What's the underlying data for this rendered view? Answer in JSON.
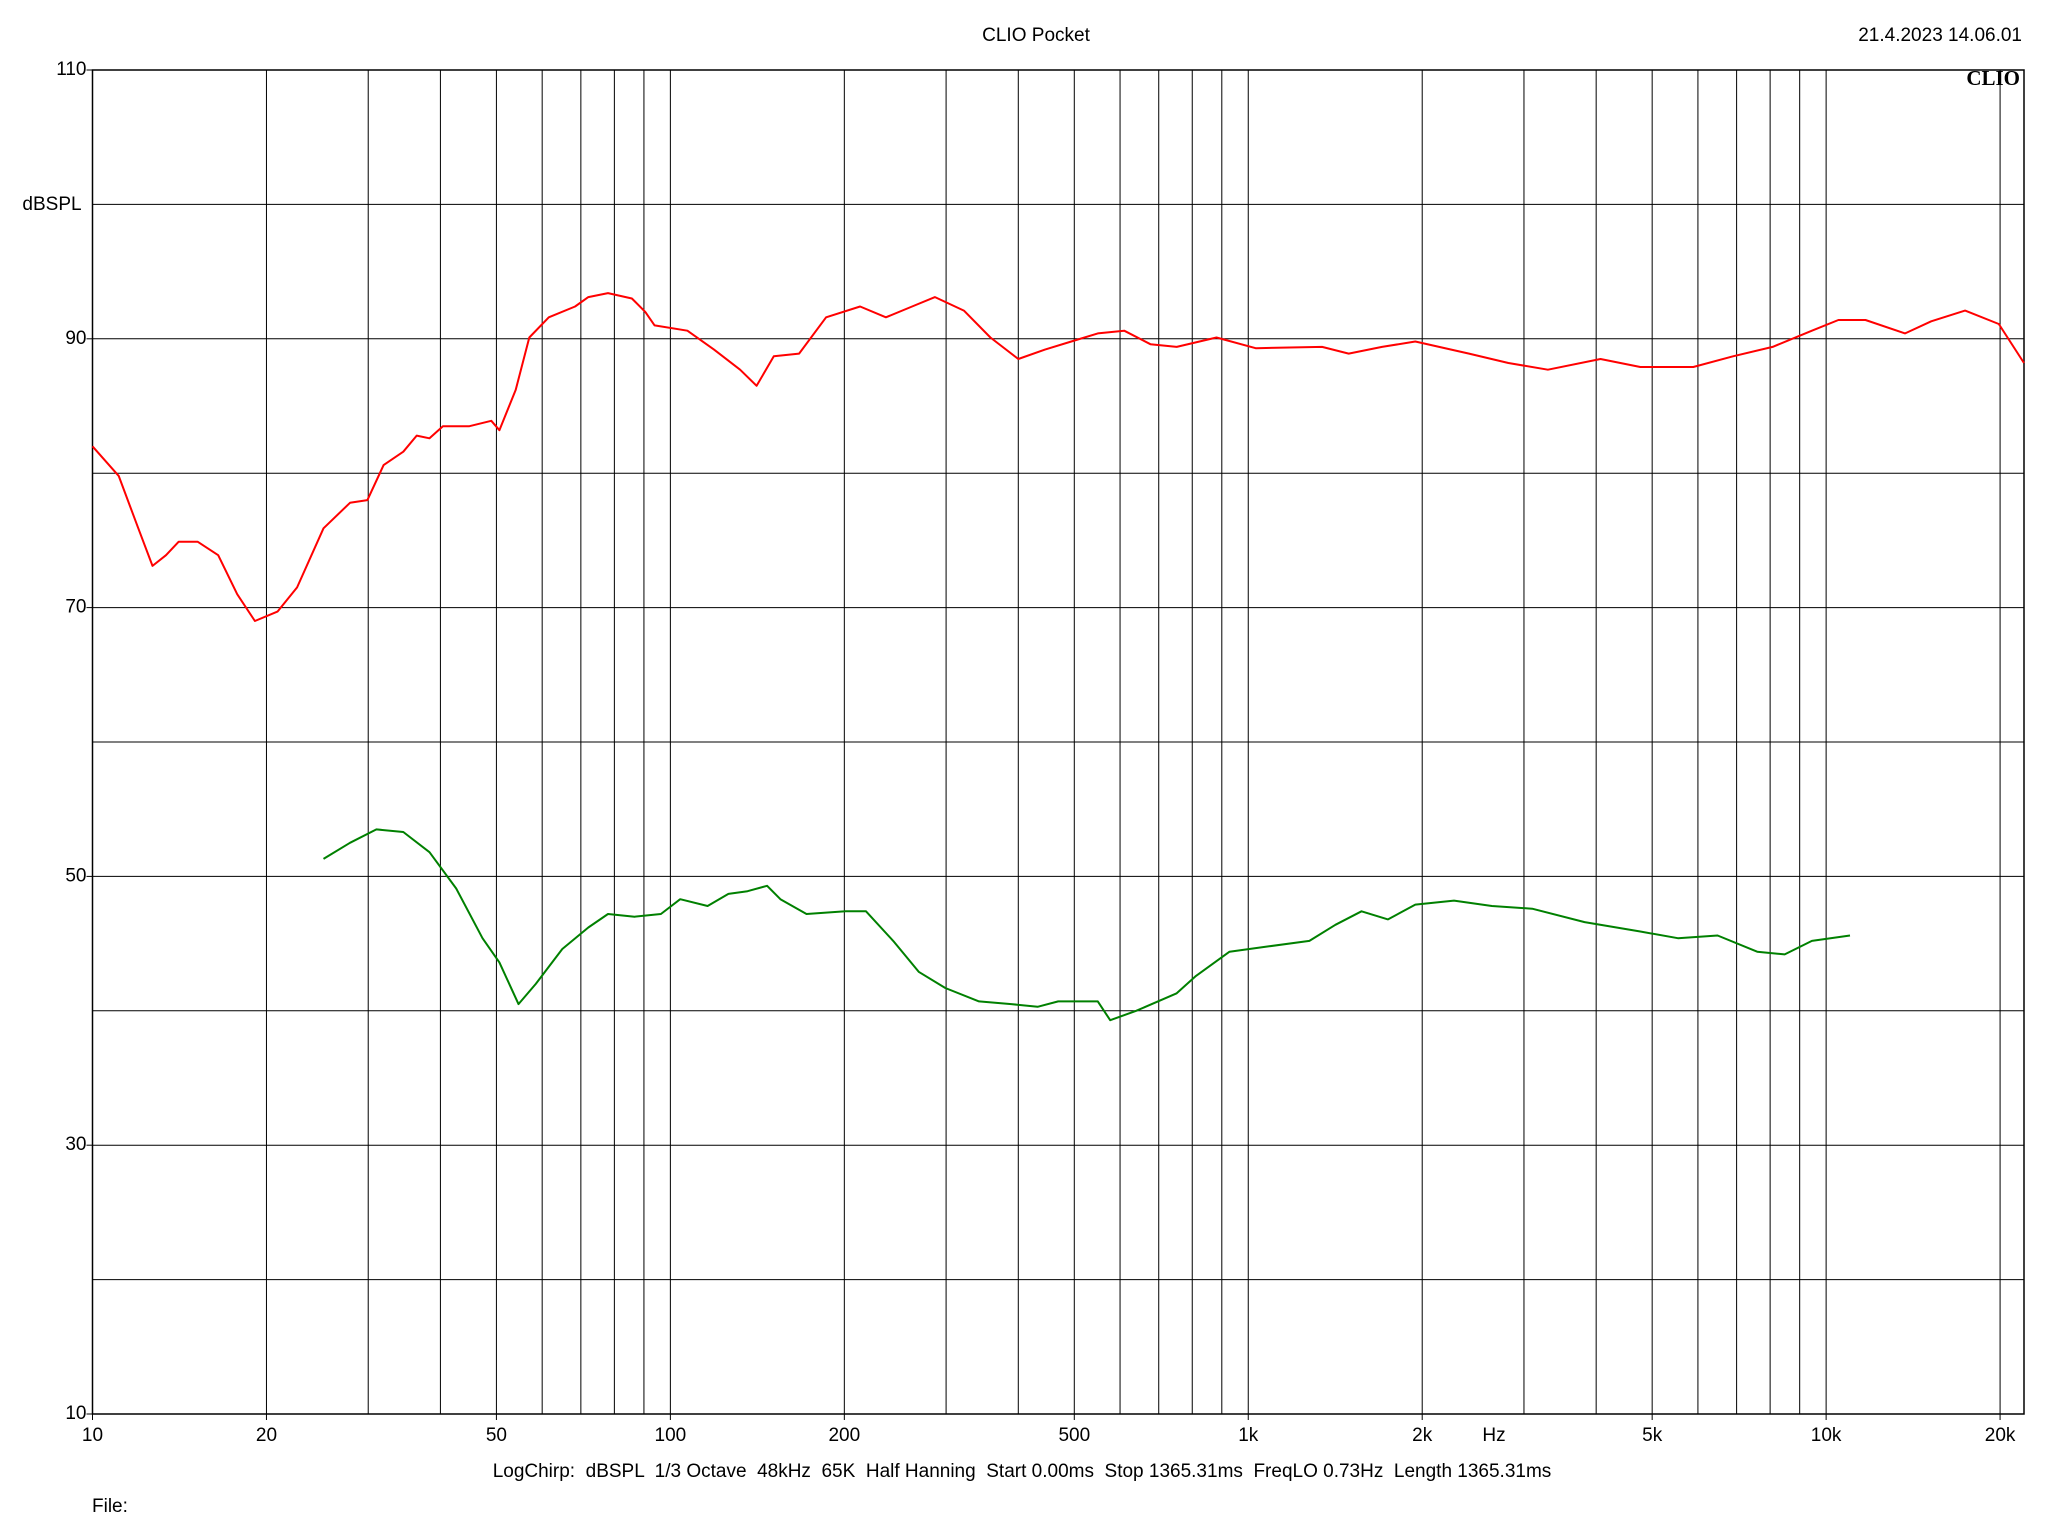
{
  "chart_data": {
    "type": "line",
    "title": "CLIO Pocket",
    "date": "21.4.2023 14.06.01",
    "logo": "CLIO",
    "ylabel": "dBSPL",
    "xlabel": "Hz",
    "footer": "LogChirp:  dBSPL  1/3 Octave  48kHz  65K  Half Hanning  Start 0.00ms  Stop 1365.31ms  FreqLO 0.73Hz  Length 1365.31ms",
    "file_label": "File:",
    "log_x": true,
    "grid": true,
    "xlim": [
      10,
      22000
    ],
    "ylim": [
      10,
      110
    ],
    "xticks": [
      10,
      20,
      50,
      100,
      200,
      500,
      {
        "value": 1000,
        "label": "1k"
      },
      {
        "value": 2000,
        "label": "2k"
      },
      {
        "value": 5000,
        "label": "5k"
      },
      {
        "value": 10000,
        "label": "10k"
      },
      {
        "value": 20000,
        "label": "20k"
      }
    ],
    "xgrid": [
      20,
      30,
      40,
      50,
      60,
      70,
      80,
      90,
      100,
      200,
      300,
      400,
      500,
      600,
      700,
      800,
      900,
      1000,
      2000,
      3000,
      4000,
      5000,
      6000,
      7000,
      8000,
      9000,
      10000,
      20000
    ],
    "yticks": [
      10,
      30,
      50,
      70,
      90,
      110
    ],
    "ygrid": [
      20,
      30,
      40,
      50,
      60,
      70,
      80,
      90,
      100
    ],
    "series": [
      {
        "color": "#ff0000",
        "x": [
          10,
          11.1,
          12,
          12.7,
          13.4,
          14.1,
          15.2,
          16.5,
          17.8,
          19.1,
          20.9,
          22.6,
          25.1,
          27.9,
          29.9,
          31.9,
          34.5,
          36.4,
          38.3,
          40.4,
          44.9,
          49,
          50.6,
          54,
          57,
          61.6,
          68.4,
          72.1,
          78,
          85.8,
          90.5,
          93.9,
          107,
          119,
          132,
          141,
          151,
          167,
          186,
          213,
          236,
          262,
          287,
          322,
          358,
          400,
          445,
          494,
          549,
          610,
          677,
          752,
          881,
          1030,
          1342,
          1492,
          1704,
          1946,
          2410,
          2820,
          3300,
          4070,
          4770,
          5890,
          6900,
          8080,
          9450,
          10500,
          11700,
          13700,
          15200,
          17400,
          19900,
          22000
        ],
        "values": [
          82,
          79.8,
          75.9,
          73.1,
          73.9,
          74.9,
          74.9,
          73.9,
          71,
          69,
          69.7,
          71.5,
          75.9,
          77.8,
          78,
          80.6,
          81.6,
          82.8,
          82.6,
          83.5,
          83.5,
          83.9,
          83.2,
          86.2,
          90.1,
          91.6,
          92.4,
          93.1,
          93.4,
          93,
          92,
          91,
          90.6,
          89.2,
          87.7,
          86.5,
          88.7,
          88.9,
          91.6,
          92.4,
          91.6,
          92.4,
          93.1,
          92.1,
          90.1,
          88.5,
          89.2,
          89.8,
          90.4,
          90.6,
          89.6,
          89.4,
          90.1,
          89.3,
          89.4,
          88.9,
          89.4,
          89.8,
          88.9,
          88.2,
          87.7,
          88.5,
          87.9,
          87.9,
          88.7,
          89.4,
          90.6,
          91.4,
          91.4,
          90.4,
          91.3,
          92.1,
          91.1,
          88.2
        ]
      },
      {
        "color": "#008000",
        "x": [
          25.1,
          27.9,
          31,
          34.5,
          38.3,
          42.6,
          47.3,
          50.6,
          54.6,
          58.5,
          65,
          72.1,
          78,
          86.7,
          96.3,
          104,
          116,
          126,
          136,
          147,
          155,
          172,
          201,
          218,
          243,
          269,
          299,
          342,
          389,
          432,
          469,
          549,
          577,
          640,
          752,
          812,
          928,
          1087,
          1276,
          1415,
          1570,
          1745,
          1946,
          2270,
          2640,
          3100,
          3820,
          4770,
          5540,
          6490,
          7600,
          8480,
          9450,
          11000
        ],
        "values": [
          51.3,
          52.5,
          53.5,
          53.3,
          51.8,
          49.1,
          45.4,
          43.6,
          40.5,
          42,
          44.6,
          46.2,
          47.2,
          47,
          47.2,
          48.3,
          47.8,
          48.7,
          48.9,
          49.3,
          48.3,
          47.2,
          47.4,
          47.4,
          45.2,
          42.9,
          41.7,
          40.7,
          40.5,
          40.3,
          40.7,
          40.7,
          39.3,
          40,
          41.3,
          42.6,
          44.4,
          44.8,
          45.2,
          46.4,
          47.4,
          46.8,
          47.9,
          48.2,
          47.8,
          47.6,
          46.6,
          45.9,
          45.4,
          45.6,
          44.4,
          44.2,
          45.2,
          45.6
        ]
      }
    ]
  }
}
